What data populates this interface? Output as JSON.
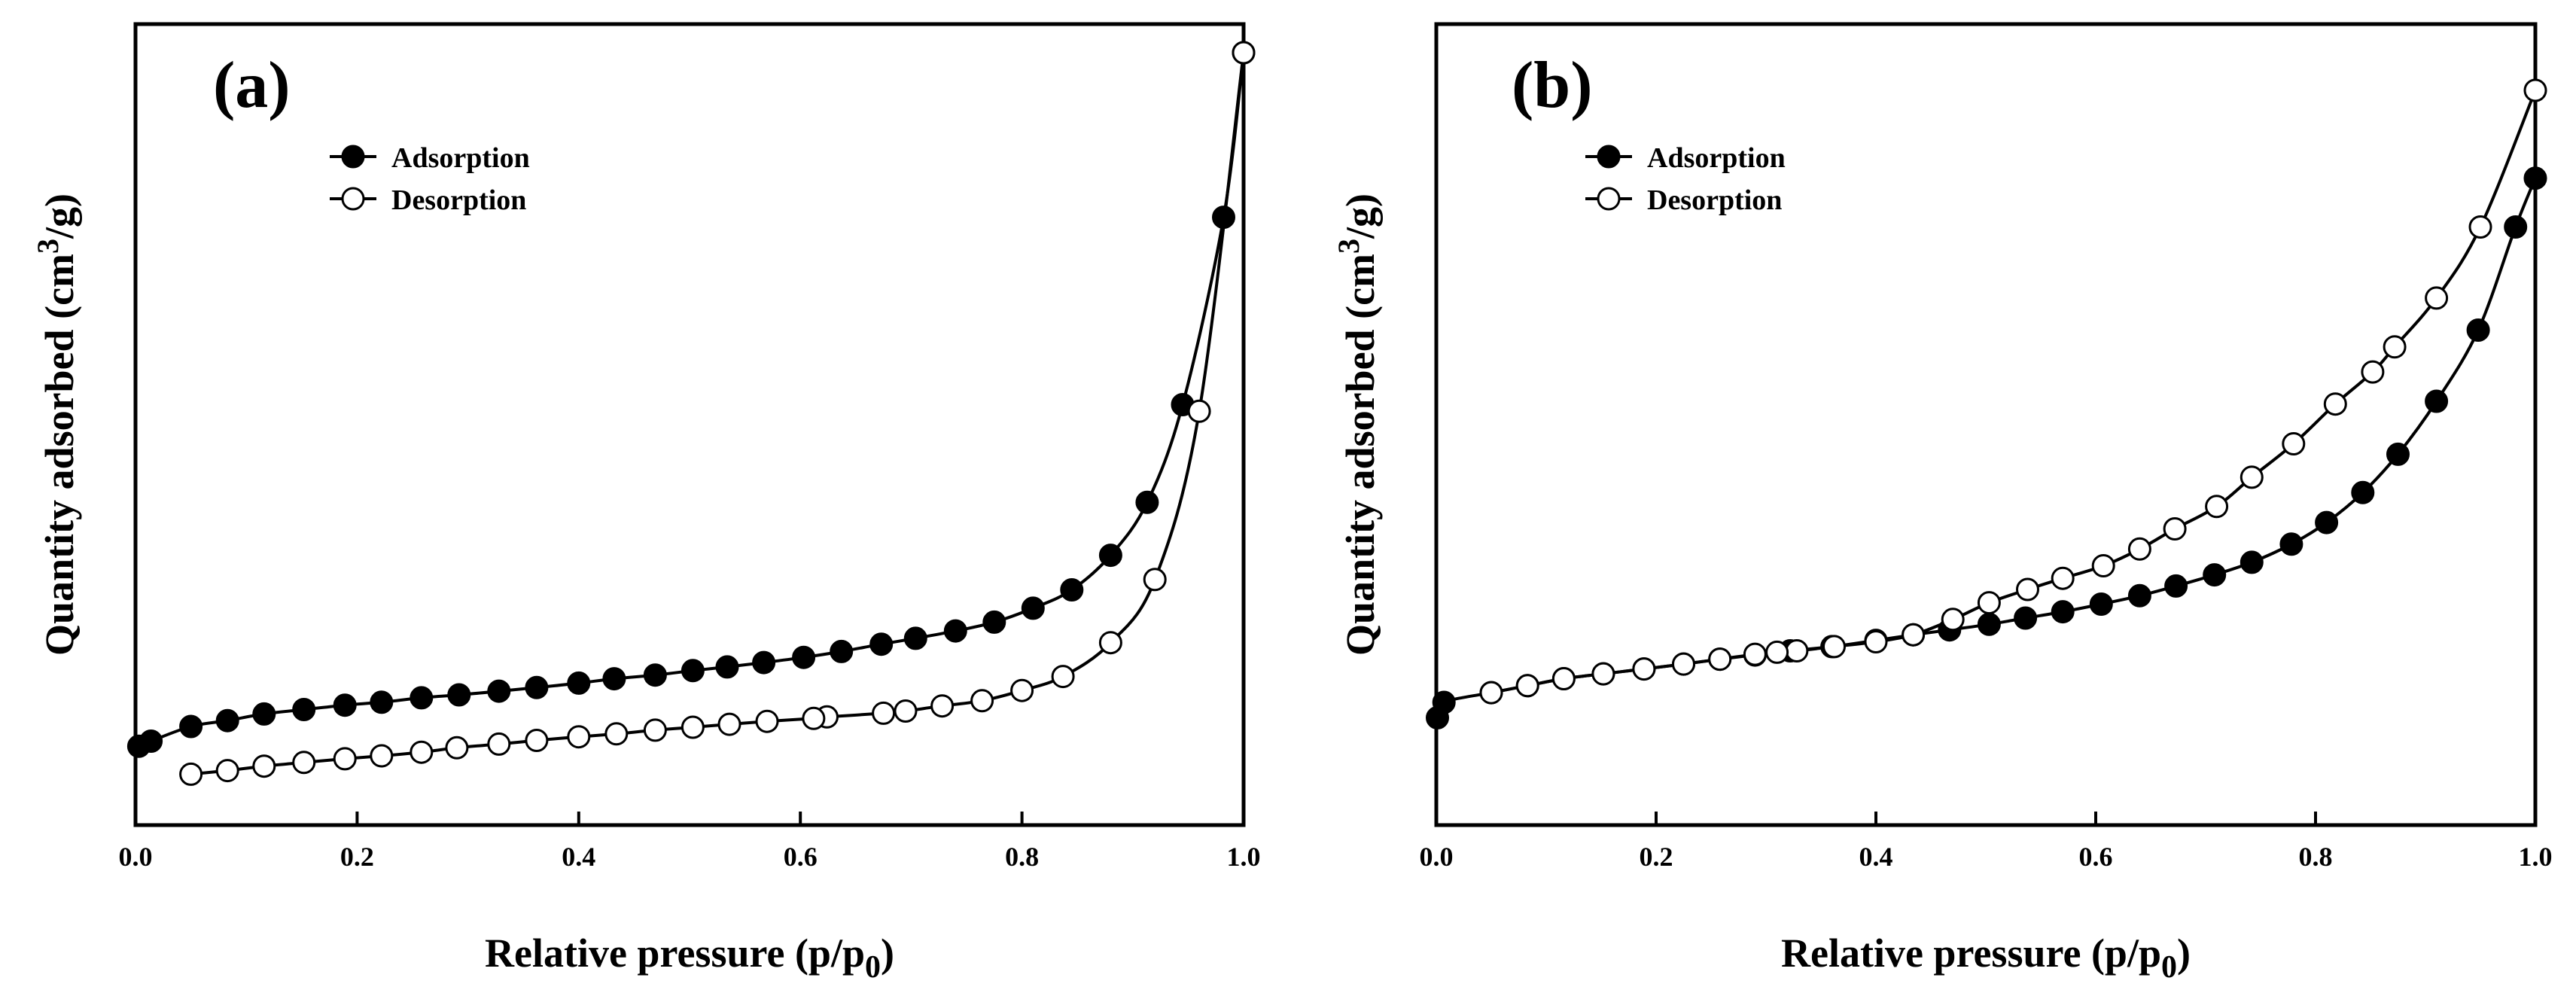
{
  "chart_data": [
    {
      "type": "line",
      "panel_label": "(a)",
      "xlabel": "Relative pressure (p/p",
      "xlabel_sub": "0",
      "xlabel_close": ")",
      "ylabel": "Quantity adsorbed (cm",
      "ylabel_sup": "3",
      "ylabel_end": "/g)",
      "xlim": [
        0.0,
        1.0
      ],
      "ylim": [
        0,
        100
      ],
      "x_ticks": [
        "0.0",
        "0.2",
        "0.4",
        "0.6",
        "0.8",
        "1.0"
      ],
      "y_tick_labels": false,
      "legend": "top-left",
      "series": [
        {
          "name": "Adsorption",
          "marker": "filled-circle",
          "x": [
            0.003,
            0.014,
            0.05,
            0.083,
            0.116,
            0.152,
            0.189,
            0.222,
            0.258,
            0.292,
            0.328,
            0.362,
            0.4,
            0.432,
            0.469,
            0.503,
            0.534,
            0.567,
            0.603,
            0.637,
            0.673,
            0.704,
            0.74,
            0.775,
            0.81,
            0.845,
            0.88,
            0.913,
            0.945,
            0.982,
            1.0
          ],
          "y": [
            5.6,
            6.3,
            8.3,
            9.1,
            10.0,
            10.6,
            11.2,
            11.6,
            12.2,
            12.6,
            13.1,
            13.6,
            14.2,
            14.8,
            15.3,
            15.9,
            16.4,
            17.0,
            17.7,
            18.5,
            19.5,
            20.3,
            21.3,
            22.5,
            24.4,
            26.9,
            31.6,
            38.8,
            52.1,
            77.6,
            100.0
          ]
        },
        {
          "name": "Desorption",
          "marker": "open-circle",
          "x": [
            1.0,
            0.96,
            0.92,
            0.88,
            0.837,
            0.8,
            0.764,
            0.728,
            0.695,
            0.675,
            0.624,
            0.612,
            0.57,
            0.536,
            0.503,
            0.469,
            0.434,
            0.4,
            0.362,
            0.328,
            0.29,
            0.258,
            0.222,
            0.189,
            0.152,
            0.116,
            0.083,
            0.05
          ],
          "y": [
            100.0,
            51.2,
            28.3,
            19.7,
            15.1,
            13.2,
            11.8,
            11.1,
            10.4,
            10.1,
            9.6,
            9.4,
            9.0,
            8.6,
            8.2,
            7.8,
            7.3,
            6.9,
            6.4,
            5.9,
            5.4,
            4.8,
            4.3,
            3.9,
            3.4,
            2.9,
            2.3,
            1.8
          ]
        }
      ]
    },
    {
      "type": "line",
      "panel_label": "(b)",
      "xlabel": "Relative pressure (p/p",
      "xlabel_sub": "0",
      "xlabel_close": ")",
      "ylabel": "Quantity adsorbed (cm",
      "ylabel_sup": "3",
      "ylabel_end": "/g)",
      "xlim": [
        0.0,
        1.0
      ],
      "ylim": [
        0,
        100
      ],
      "x_ticks": [
        "0.0",
        "0.2",
        "0.4",
        "0.6",
        "0.8",
        "1.0"
      ],
      "y_tick_labels": false,
      "legend": "top-left",
      "series": [
        {
          "name": "Adsorption",
          "marker": "filled-circle",
          "x": [
            0.001,
            0.007,
            0.05,
            0.083,
            0.116,
            0.152,
            0.189,
            0.225,
            0.258,
            0.29,
            0.322,
            0.36,
            0.4,
            0.434,
            0.467,
            0.503,
            0.536,
            0.57,
            0.605,
            0.64,
            0.673,
            0.708,
            0.742,
            0.778,
            0.81,
            0.843,
            0.875,
            0.91,
            0.948,
            0.982,
            1.0
          ],
          "y": [
            10.0,
            12.2,
            13.6,
            14.6,
            15.6,
            16.3,
            17.0,
            17.7,
            18.4,
            19.0,
            19.6,
            20.2,
            21.1,
            21.9,
            22.6,
            23.4,
            24.3,
            25.2,
            26.3,
            27.5,
            28.9,
            30.5,
            32.3,
            34.9,
            38.0,
            42.3,
            47.8,
            55.4,
            65.6,
            80.4,
            87.4
          ]
        },
        {
          "name": "Desorption",
          "marker": "open-circle",
          "x": [
            1.0,
            0.95,
            0.91,
            0.872,
            0.852,
            0.818,
            0.78,
            0.742,
            0.71,
            0.672,
            0.64,
            0.607,
            0.57,
            0.538,
            0.503,
            0.47,
            0.434,
            0.4,
            0.362,
            0.328,
            0.31,
            0.29,
            0.258,
            0.225,
            0.189,
            0.152,
            0.116,
            0.083,
            0.05
          ],
          "y": [
            100.0,
            80.4,
            70.2,
            63.2,
            59.6,
            55.0,
            49.3,
            44.5,
            40.3,
            37.1,
            34.2,
            31.8,
            30.0,
            28.4,
            26.5,
            24.1,
            21.9,
            20.9,
            20.2,
            19.6,
            19.4,
            19.1,
            18.4,
            17.7,
            17.0,
            16.3,
            15.6,
            14.6,
            13.6
          ]
        }
      ]
    }
  ]
}
